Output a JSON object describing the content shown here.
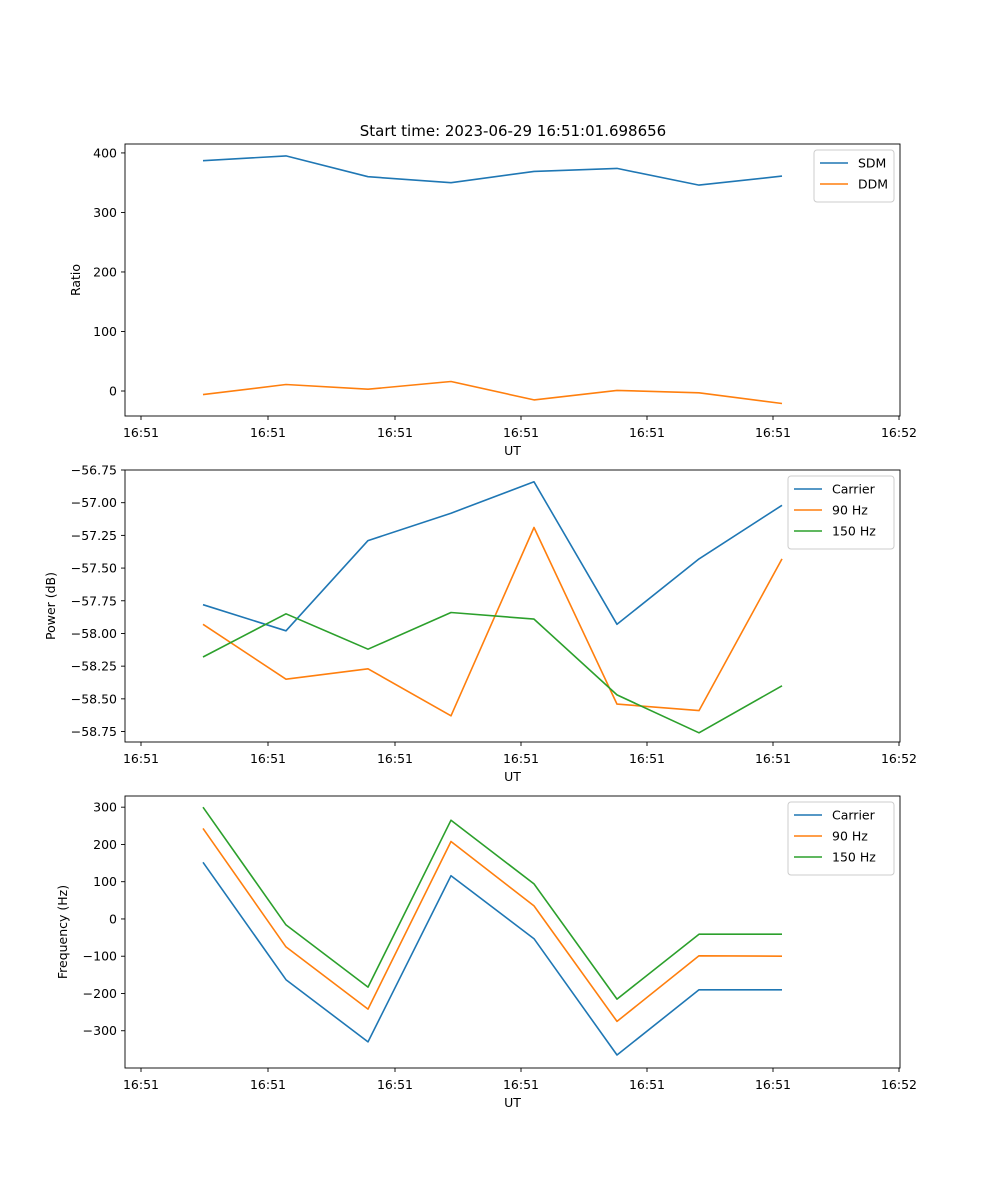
{
  "title": "Start time: 2023-06-29 16:51:01.698656",
  "colors": {
    "blue": "#1f77b4",
    "orange": "#ff7f0e",
    "green": "#2ca02c"
  },
  "chart_data": [
    {
      "type": "line",
      "xlabel": "UT",
      "ylabel": "Ratio",
      "legend": "top-right",
      "x_tick_labels": [
        "16:51",
        "16:51",
        "16:51",
        "16:51",
        "16:51",
        "16:51",
        "16:52"
      ],
      "y_ticks": [
        0,
        100,
        200,
        300,
        400
      ],
      "y_tick_labels": [
        "0",
        "100",
        "200",
        "300",
        "400"
      ],
      "ylim": [
        -42,
        415
      ],
      "series": [
        {
          "name": "SDM",
          "color": "#1f77b4",
          "values": [
            387,
            395,
            360,
            350,
            369,
            374,
            346,
            361
          ]
        },
        {
          "name": "DDM",
          "color": "#ff7f0e",
          "values": [
            -6,
            11,
            3,
            16,
            -15,
            1,
            -3,
            -21
          ]
        }
      ]
    },
    {
      "type": "line",
      "xlabel": "UT",
      "ylabel": "Power (dB)",
      "legend": "top-right",
      "x_tick_labels": [
        "16:51",
        "16:51",
        "16:51",
        "16:51",
        "16:51",
        "16:51",
        "16:52"
      ],
      "y_ticks": [
        -56.75,
        -57.0,
        -57.25,
        -57.5,
        -57.75,
        -58.0,
        -58.25,
        -58.5,
        -58.75
      ],
      "y_tick_labels": [
        "−56.75",
        "−57.00",
        "−57.25",
        "−57.50",
        "−57.75",
        "−58.00",
        "−58.25",
        "−58.50",
        "−58.75"
      ],
      "ylim": [
        -58.83,
        -56.75
      ],
      "series": [
        {
          "name": "Carrier",
          "color": "#1f77b4",
          "values": [
            -57.78,
            -57.98,
            -57.29,
            -57.08,
            -56.84,
            -57.93,
            -57.43,
            -57.02
          ]
        },
        {
          "name": "90 Hz",
          "color": "#ff7f0e",
          "values": [
            -57.93,
            -58.35,
            -58.27,
            -58.63,
            -57.19,
            -58.54,
            -58.59,
            -57.43
          ]
        },
        {
          "name": "150 Hz",
          "color": "#2ca02c",
          "values": [
            -58.18,
            -57.85,
            -58.12,
            -57.84,
            -57.89,
            -58.47,
            -58.76,
            -58.4
          ]
        }
      ]
    },
    {
      "type": "line",
      "xlabel": "UT",
      "ylabel": "Frequency (Hz)",
      "legend": "top-right",
      "x_tick_labels": [
        "16:51",
        "16:51",
        "16:51",
        "16:51",
        "16:51",
        "16:51",
        "16:52"
      ],
      "y_ticks": [
        300,
        200,
        100,
        0,
        -100,
        -200,
        -300
      ],
      "y_tick_labels": [
        "300",
        "200",
        "100",
        "0",
        "−100",
        "−200",
        "−300"
      ],
      "ylim": [
        -400,
        330
      ],
      "series": [
        {
          "name": "Carrier",
          "color": "#1f77b4",
          "values": [
            152,
            -163,
            -330,
            116,
            -53,
            -365,
            -190,
            -190
          ]
        },
        {
          "name": "90 Hz",
          "color": "#ff7f0e",
          "values": [
            243,
            -75,
            -242,
            208,
            35,
            -275,
            -99,
            -100
          ]
        },
        {
          "name": "150 Hz",
          "color": "#2ca02c",
          "values": [
            300,
            -16,
            -183,
            265,
            94,
            -215,
            -41,
            -41
          ]
        }
      ]
    }
  ]
}
